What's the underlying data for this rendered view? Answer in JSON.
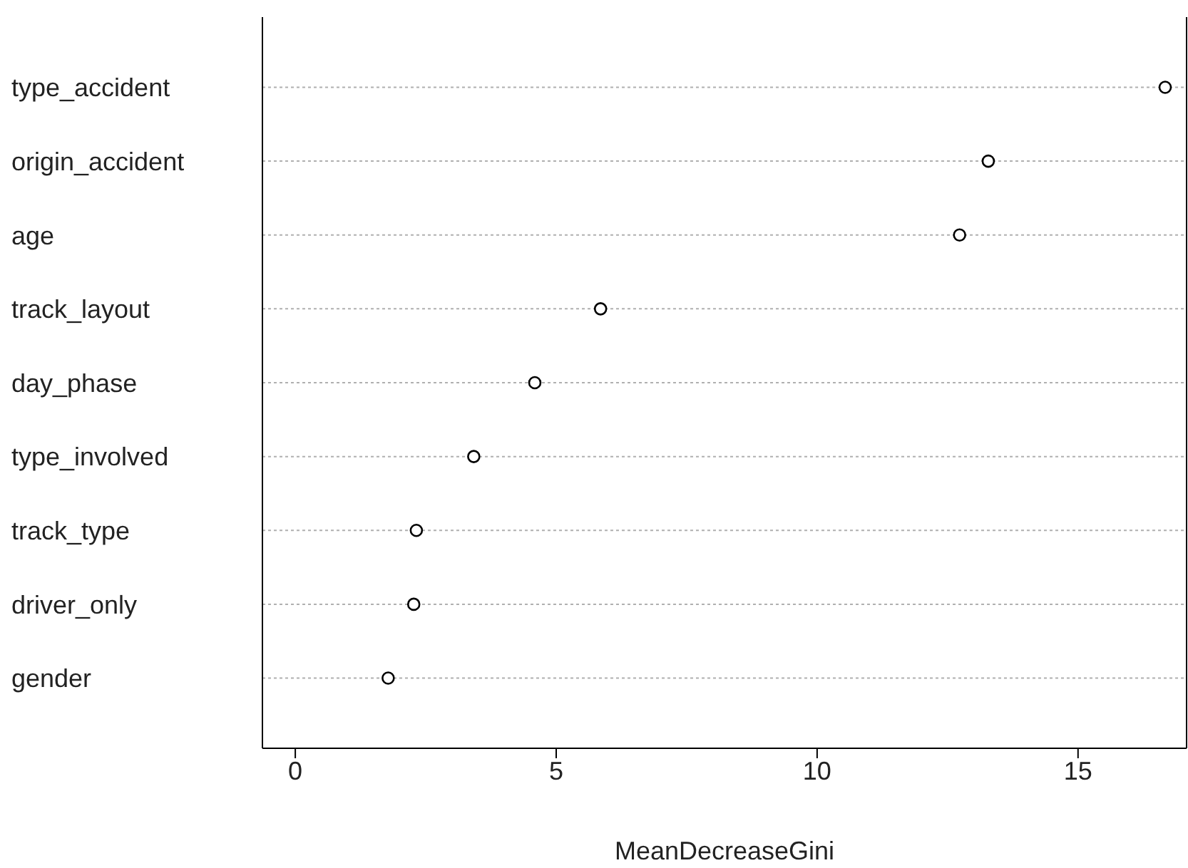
{
  "chart_data": {
    "type": "scatter",
    "orientation": "horizontal",
    "xlabel": "MeanDecreaseGini",
    "categories": [
      "type_accident",
      "origin_accident",
      "age",
      "track_layout",
      "day_phase",
      "type_involved",
      "track_type",
      "driver_only",
      "gender"
    ],
    "values": [
      16.67,
      13.28,
      12.73,
      5.85,
      4.59,
      3.42,
      2.32,
      2.27,
      1.78
    ],
    "color": "#000000",
    "marker": "circle",
    "grid": "y",
    "xlim": [
      -0.63,
      17.08
    ],
    "xticks": [
      0,
      5,
      10,
      15
    ]
  }
}
